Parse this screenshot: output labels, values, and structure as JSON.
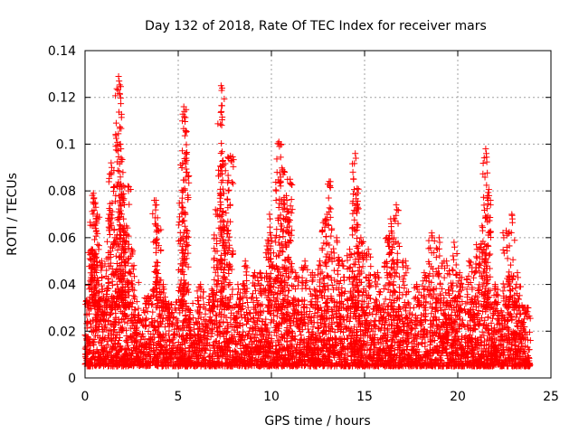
{
  "chart_data": {
    "type": "scatter",
    "title": "Day 132 of 2018, Rate Of TEC Index for receiver mars",
    "xlabel": "GPS time / hours",
    "ylabel": "ROTI / TECUs",
    "xlim": [
      0,
      25
    ],
    "ylim": [
      0,
      0.14
    ],
    "xticks": [
      0,
      5,
      10,
      15,
      20,
      25
    ],
    "yticks": [
      0,
      0.02,
      0.04,
      0.06,
      0.08,
      0.1,
      0.12,
      0.14
    ],
    "xtick_labels": [
      "0",
      "5",
      "10",
      "15",
      "20",
      "25"
    ],
    "ytick_labels": [
      "0",
      "0.02",
      "0.04",
      "0.06",
      "0.08",
      "0.1",
      "0.12",
      "0.14"
    ],
    "grid": true,
    "marker": "+",
    "series": [
      {
        "name": "ROTI",
        "color": "#ff0000",
        "x_range": [
          0,
          23.9
        ],
        "baseline_range": [
          0.005,
          0.03
        ],
        "spikes": [
          [
            0.2,
            0.04
          ],
          [
            0.35,
            0.055
          ],
          [
            0.45,
            0.079
          ],
          [
            0.55,
            0.075
          ],
          [
            0.65,
            0.07
          ],
          [
            0.9,
            0.05
          ],
          [
            1.3,
            0.07
          ],
          [
            1.4,
            0.092
          ],
          [
            1.6,
            0.06
          ],
          [
            1.8,
            0.129
          ],
          [
            1.9,
            0.1
          ],
          [
            2.0,
            0.077
          ],
          [
            2.1,
            0.065
          ],
          [
            2.3,
            0.082
          ],
          [
            2.5,
            0.055
          ],
          [
            3.4,
            0.035
          ],
          [
            3.8,
            0.076
          ],
          [
            3.9,
            0.065
          ],
          [
            4.2,
            0.04
          ],
          [
            4.5,
            0.032
          ],
          [
            5.2,
            0.075
          ],
          [
            5.3,
            0.116
          ],
          [
            5.4,
            0.096
          ],
          [
            6.2,
            0.04
          ],
          [
            6.8,
            0.038
          ],
          [
            7.0,
            0.072
          ],
          [
            7.3,
            0.125
          ],
          [
            7.4,
            0.093
          ],
          [
            7.6,
            0.065
          ],
          [
            7.8,
            0.095
          ],
          [
            8.2,
            0.04
          ],
          [
            8.6,
            0.05
          ],
          [
            9.1,
            0.045
          ],
          [
            9.4,
            0.045
          ],
          [
            9.8,
            0.055
          ],
          [
            9.9,
            0.07
          ],
          [
            10.2,
            0.06
          ],
          [
            10.4,
            0.101
          ],
          [
            10.6,
            0.089
          ],
          [
            10.8,
            0.078
          ],
          [
            11.0,
            0.085
          ],
          [
            11.3,
            0.045
          ],
          [
            11.8,
            0.05
          ],
          [
            12.2,
            0.045
          ],
          [
            12.6,
            0.05
          ],
          [
            12.9,
            0.068
          ],
          [
            13.1,
            0.084
          ],
          [
            13.5,
            0.06
          ],
          [
            13.8,
            0.05
          ],
          [
            14.2,
            0.055
          ],
          [
            14.5,
            0.096
          ],
          [
            14.6,
            0.081
          ],
          [
            14.8,
            0.06
          ],
          [
            15.2,
            0.055
          ],
          [
            15.7,
            0.045
          ],
          [
            16.2,
            0.06
          ],
          [
            16.4,
            0.068
          ],
          [
            16.7,
            0.074
          ],
          [
            17.2,
            0.05
          ],
          [
            17.8,
            0.04
          ],
          [
            18.2,
            0.045
          ],
          [
            18.6,
            0.062
          ],
          [
            19.0,
            0.06
          ],
          [
            19.4,
            0.05
          ],
          [
            19.8,
            0.058
          ],
          [
            20.1,
            0.045
          ],
          [
            20.6,
            0.05
          ],
          [
            21.0,
            0.057
          ],
          [
            21.3,
            0.065
          ],
          [
            21.5,
            0.098
          ],
          [
            21.6,
            0.078
          ],
          [
            22.0,
            0.04
          ],
          [
            22.6,
            0.063
          ],
          [
            22.9,
            0.07
          ],
          [
            23.2,
            0.045
          ],
          [
            23.6,
            0.03
          ]
        ]
      }
    ]
  }
}
